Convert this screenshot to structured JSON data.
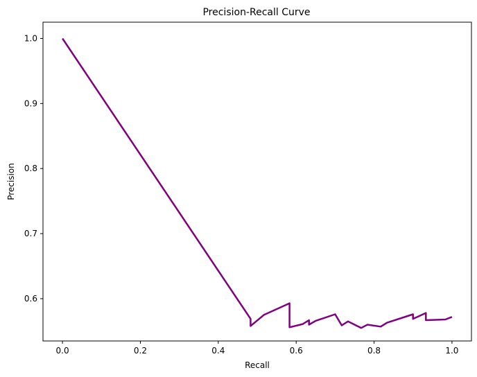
{
  "chart_data": {
    "type": "line",
    "title": "Precision-Recall Curve",
    "xlabel": "Recall",
    "ylabel": "Precision",
    "xlim": [
      -0.05,
      1.05
    ],
    "ylim": [
      0.535,
      1.025
    ],
    "xticks": [
      0.0,
      0.2,
      0.4,
      0.6,
      0.8,
      1.0
    ],
    "xtick_labels": [
      "0.0",
      "0.2",
      "0.4",
      "0.6",
      "0.8",
      "1.0"
    ],
    "yticks": [
      0.6,
      0.7,
      0.8,
      0.9,
      1.0
    ],
    "ytick_labels": [
      "0.6",
      "0.7",
      "0.8",
      "0.9",
      "1.0"
    ],
    "grid": false,
    "legend": "none",
    "series": [
      {
        "color": "#800080",
        "x": [
          0.0,
          0.483,
          0.483,
          0.517,
          0.583,
          0.583,
          0.617,
          0.633,
          0.633,
          0.65,
          0.7,
          0.717,
          0.733,
          0.767,
          0.783,
          0.817,
          0.833,
          0.9,
          0.9,
          0.933,
          0.933,
          0.983,
          1.0
        ],
        "y": [
          1.0,
          0.569,
          0.558,
          0.575,
          0.593,
          0.556,
          0.561,
          0.567,
          0.56,
          0.566,
          0.576,
          0.559,
          0.565,
          0.555,
          0.56,
          0.557,
          0.563,
          0.576,
          0.569,
          0.578,
          0.567,
          0.568,
          0.572
        ]
      }
    ]
  }
}
